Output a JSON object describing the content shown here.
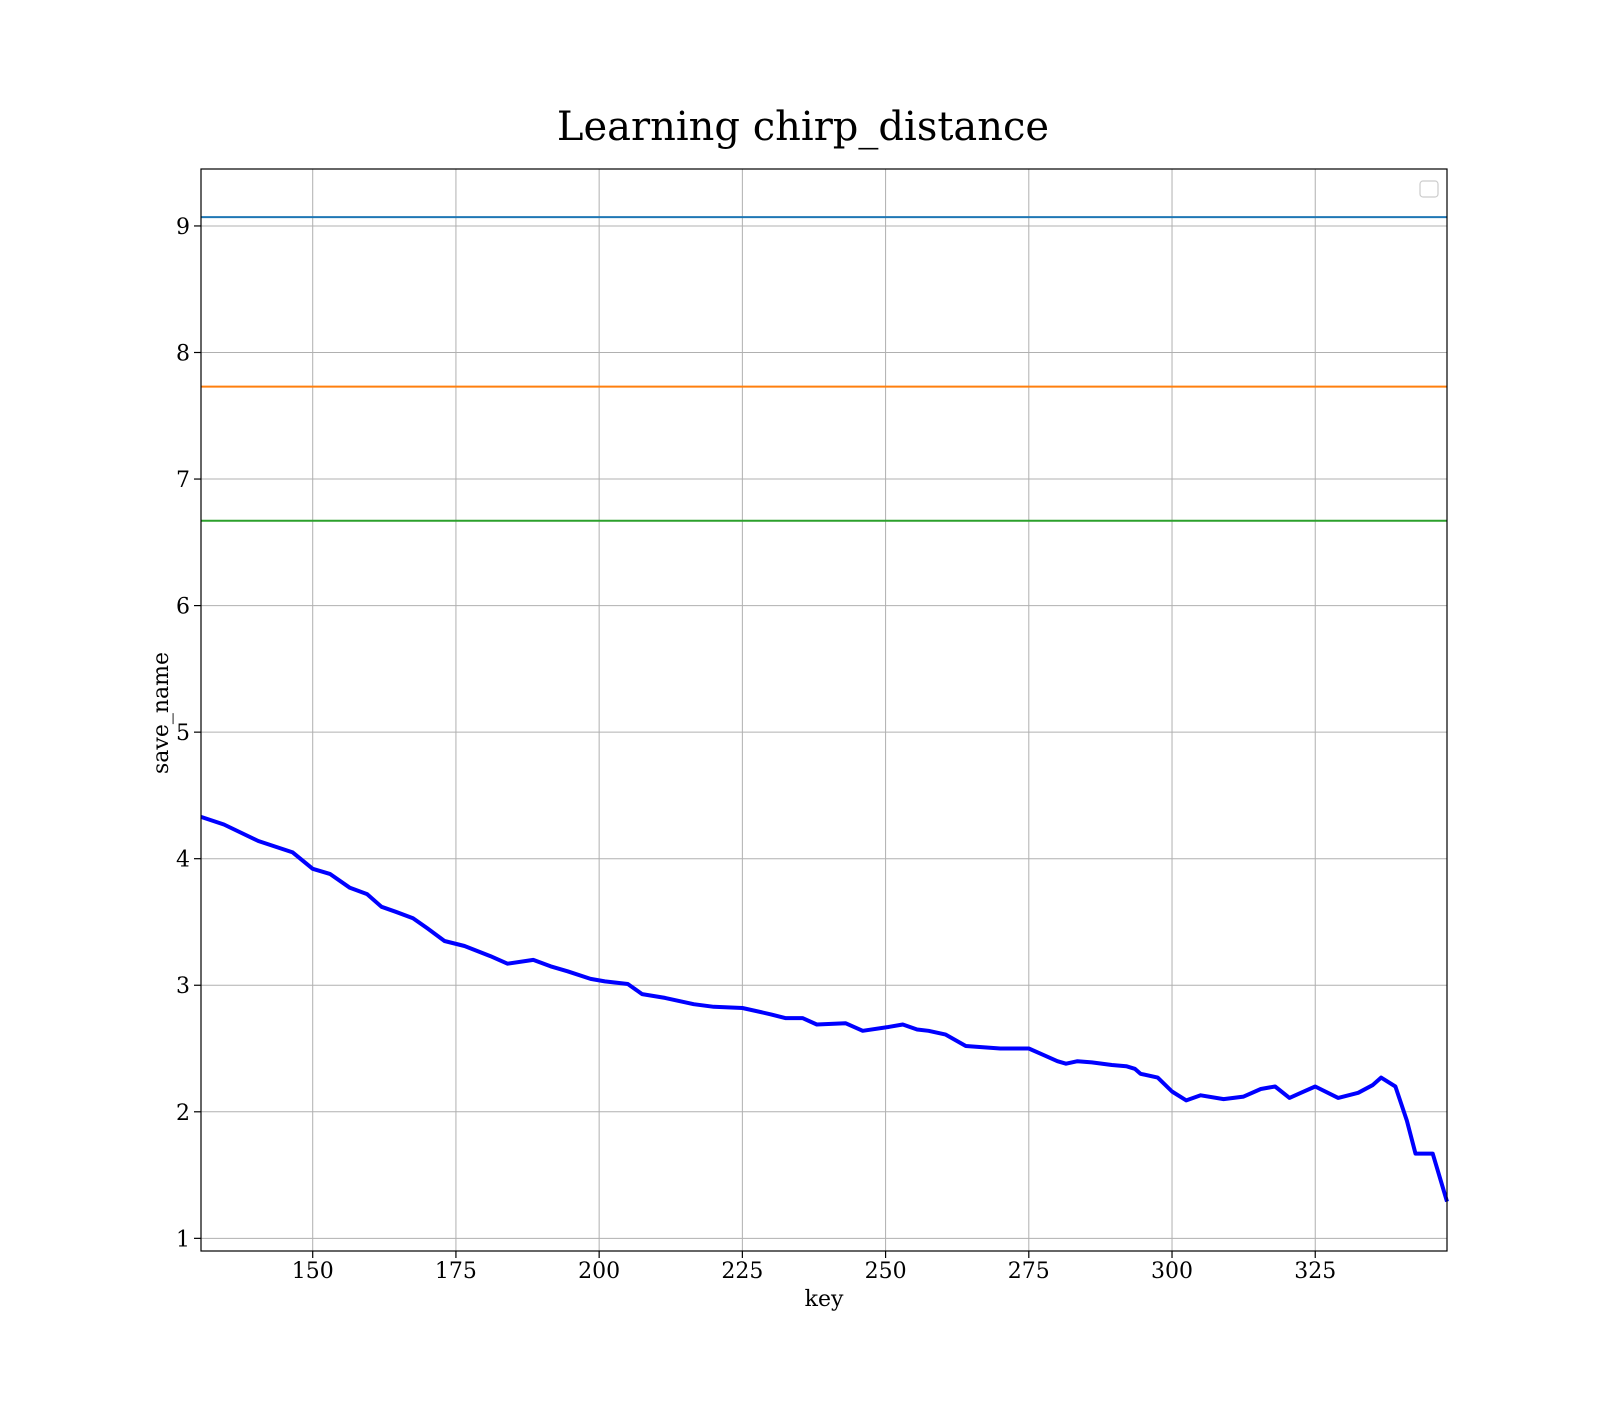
{
  "chart_data": {
    "type": "line",
    "title": "Learning chirp_distance",
    "xlabel": "key",
    "ylabel": "save_name",
    "xlim": [
      130.5,
      348
    ],
    "ylim": [
      0.9,
      9.45
    ],
    "xticks": [
      150,
      175,
      200,
      225,
      250,
      275,
      300,
      325
    ],
    "yticks": [
      1,
      2,
      3,
      4,
      5,
      6,
      7,
      8,
      9
    ],
    "grid": true,
    "legend": {
      "placement": "top-right",
      "entries": []
    },
    "hlines": [
      {
        "y": 9.07,
        "color": "#1f77b4"
      },
      {
        "y": 7.73,
        "color": "#ff7f0e"
      },
      {
        "y": 6.67,
        "color": "#2ca02c"
      }
    ],
    "series": [
      {
        "color": "#0000ff",
        "x": [
          130.5,
          134.5,
          140.5,
          146.5,
          150.0,
          153.0,
          156.5,
          159.5,
          162.0,
          164.5,
          167.5,
          170.0,
          173.0,
          176.5,
          181.0,
          184.0,
          188.5,
          191.5,
          194.5,
          198.5,
          201.0,
          205.0,
          207.5,
          211.5,
          216.5,
          220.0,
          225.0,
          230.0,
          232.5,
          235.5,
          238.0,
          243.0,
          246.0,
          250.5,
          253.0,
          255.5,
          257.5,
          260.5,
          264.0,
          270.0,
          275.0,
          277.5,
          280.0,
          281.5,
          283.5,
          286.0,
          289.5,
          292.0,
          293.5,
          294.5,
          297.5,
          300.0,
          302.5,
          305.0,
          309.0,
          312.5,
          315.5,
          318.0,
          320.5,
          322.5,
          325.0,
          329.0,
          332.5,
          335.0,
          336.5,
          339.0,
          341.0,
          342.5,
          345.5,
          348.0
        ],
        "y": [
          4.33,
          4.27,
          4.14,
          4.05,
          3.92,
          3.88,
          3.77,
          3.72,
          3.62,
          3.58,
          3.53,
          3.45,
          3.35,
          3.31,
          3.23,
          3.17,
          3.2,
          3.15,
          3.11,
          3.05,
          3.03,
          3.01,
          2.93,
          2.9,
          2.85,
          2.83,
          2.82,
          2.77,
          2.74,
          2.74,
          2.69,
          2.7,
          2.64,
          2.67,
          2.69,
          2.65,
          2.64,
          2.61,
          2.52,
          2.5,
          2.5,
          2.45,
          2.4,
          2.38,
          2.4,
          2.39,
          2.37,
          2.36,
          2.34,
          2.3,
          2.27,
          2.16,
          2.09,
          2.13,
          2.1,
          2.12,
          2.18,
          2.2,
          2.11,
          2.15,
          2.2,
          2.11,
          2.15,
          2.21,
          2.27,
          2.2,
          1.93,
          1.67,
          1.67,
          1.29
        ]
      }
    ]
  }
}
